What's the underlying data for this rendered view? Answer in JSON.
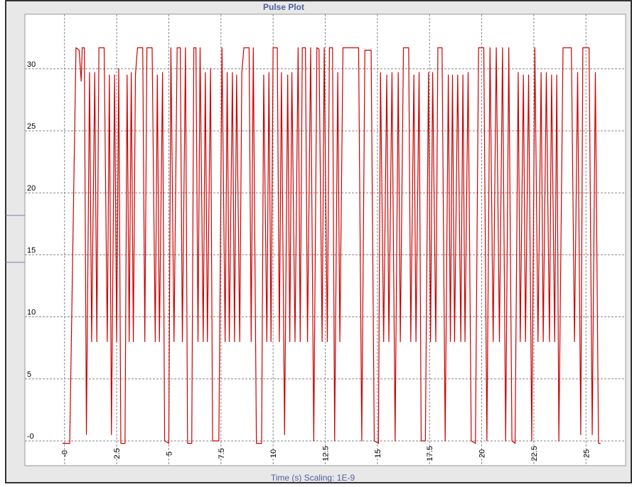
{
  "chart_data": {
    "type": "line",
    "title": "Pulse Plot",
    "x_label": "Time (s) Scaling: 1E-9",
    "color": "#cc0000",
    "grid": true,
    "xlim": [
      -1.9,
      26.9
    ],
    "ylim": [
      -2,
      34.4
    ],
    "xticks": [
      {
        "value": 0,
        "label": "-0"
      },
      2.5,
      5,
      7.5,
      10,
      12.5,
      15,
      17.5,
      20,
      22.5,
      25
    ],
    "yticks": [
      {
        "value": 0,
        "label": "-0"
      },
      5,
      10,
      15,
      20,
      25,
      30
    ],
    "x": [
      -0.1,
      0.25,
      0.55,
      0.7,
      0.8,
      0.85,
      0.95,
      1.05,
      1.2,
      1.3,
      1.45,
      1.55,
      1.65,
      1.9,
      2.05,
      2.15,
      2.25,
      2.4,
      2.5,
      2.6,
      2.7,
      2.9,
      3.0,
      3.1,
      3.2,
      3.3,
      3.4,
      3.5,
      3.75,
      3.85,
      3.95,
      4.2,
      4.35,
      4.45,
      4.55,
      4.7,
      4.8,
      5.0,
      5.1,
      5.25,
      5.4,
      5.55,
      5.65,
      5.8,
      5.9,
      6.1,
      6.2,
      6.3,
      6.4,
      6.5,
      6.65,
      6.75,
      6.85,
      7.0,
      7.1,
      7.4,
      7.55,
      7.7,
      7.8,
      7.9,
      8.05,
      8.15,
      8.25,
      8.4,
      8.5,
      8.6,
      8.85,
      8.95,
      9.05,
      9.2,
      9.45,
      9.55,
      9.7,
      9.8,
      9.9,
      10.0,
      10.2,
      10.3,
      10.4,
      10.55,
      10.7,
      10.8,
      10.9,
      11.05,
      11.2,
      11.3,
      11.4,
      11.55,
      11.65,
      11.8,
      11.95,
      12.1,
      12.2,
      12.35,
      12.45,
      12.6,
      12.7,
      12.85,
      12.95,
      13.1,
      13.2,
      13.35,
      14.1,
      14.25,
      14.4,
      14.7,
      14.85,
      15.05,
      15.15,
      15.3,
      15.45,
      15.55,
      15.7,
      15.85,
      16.0,
      16.1,
      16.25,
      16.5,
      16.6,
      16.75,
      16.85,
      17.0,
      17.1,
      17.3,
      17.45,
      17.55,
      17.65,
      17.8,
      17.9,
      18.1,
      18.25,
      18.4,
      18.5,
      18.6,
      18.7,
      18.85,
      19.0,
      19.1,
      19.2,
      19.35,
      19.5,
      19.7,
      19.85,
      20.1,
      20.25,
      20.4,
      20.55,
      20.7,
      20.85,
      21.0,
      21.15,
      21.3,
      21.45,
      21.6,
      21.75,
      21.85,
      22.0,
      22.1,
      22.25,
      22.4,
      22.55,
      22.7,
      22.85,
      22.95,
      23.1,
      23.25,
      23.35,
      23.5,
      23.6,
      23.7,
      23.9,
      24.3,
      24.45,
      24.6,
      24.75,
      24.85,
      25.15,
      25.3,
      25.45,
      25.6,
      25.7
    ],
    "values": [
      -0.2,
      -0.2,
      31.7,
      31.5,
      29,
      31.7,
      31.7,
      0.5,
      29.7,
      8,
      29.7,
      8,
      31.7,
      31.7,
      8,
      29.5,
      0.5,
      29.5,
      8,
      30,
      -0.2,
      -0.2,
      29.5,
      8,
      29.7,
      8,
      29.5,
      31.7,
      31.7,
      8,
      31.7,
      31.7,
      8,
      29.5,
      8,
      29.7,
      0,
      -0.2,
      31.7,
      8,
      31.7,
      31.7,
      8,
      31.7,
      -0.2,
      -0.2,
      31.7,
      31.7,
      8,
      31.7,
      8,
      29.7,
      8,
      30,
      0,
      0,
      31.7,
      8,
      29.7,
      8,
      29.7,
      8,
      29.5,
      8,
      29.7,
      31.7,
      31.7,
      8,
      31.7,
      -0.2,
      -0.2,
      29.5,
      8,
      29.7,
      8,
      31.7,
      31.7,
      8,
      29.7,
      0.5,
      29.5,
      8,
      29.7,
      8,
      31.7,
      8,
      31.7,
      31.7,
      8,
      31.7,
      0,
      31.7,
      31.6,
      8,
      31.7,
      8,
      31.7,
      31.7,
      0,
      29.7,
      8,
      31.7,
      31.7,
      0,
      31.5,
      31.5,
      0,
      -0.2,
      29.7,
      8,
      29.5,
      8,
      29.7,
      0,
      29.7,
      8,
      31.7,
      31.7,
      8,
      29.5,
      8,
      29.7,
      0,
      0,
      29.7,
      8,
      29.7,
      8,
      31.7,
      31.7,
      0,
      29.5,
      8,
      29.5,
      8,
      29.5,
      8,
      29.5,
      8,
      29.7,
      0,
      -0.2,
      31.7,
      31.7,
      0,
      31.7,
      8,
      31.7,
      8,
      31.7,
      0,
      31.7,
      0,
      -0.2,
      29.7,
      8,
      29.5,
      8,
      29.5,
      0,
      31.7,
      8,
      29.7,
      8,
      29.7,
      8,
      29.5,
      8,
      29.5,
      0,
      31.7,
      31.7,
      8,
      29.7,
      0.5,
      31.7,
      31.7,
      0.5,
      29.7,
      -0.2,
      -0.2
    ]
  }
}
